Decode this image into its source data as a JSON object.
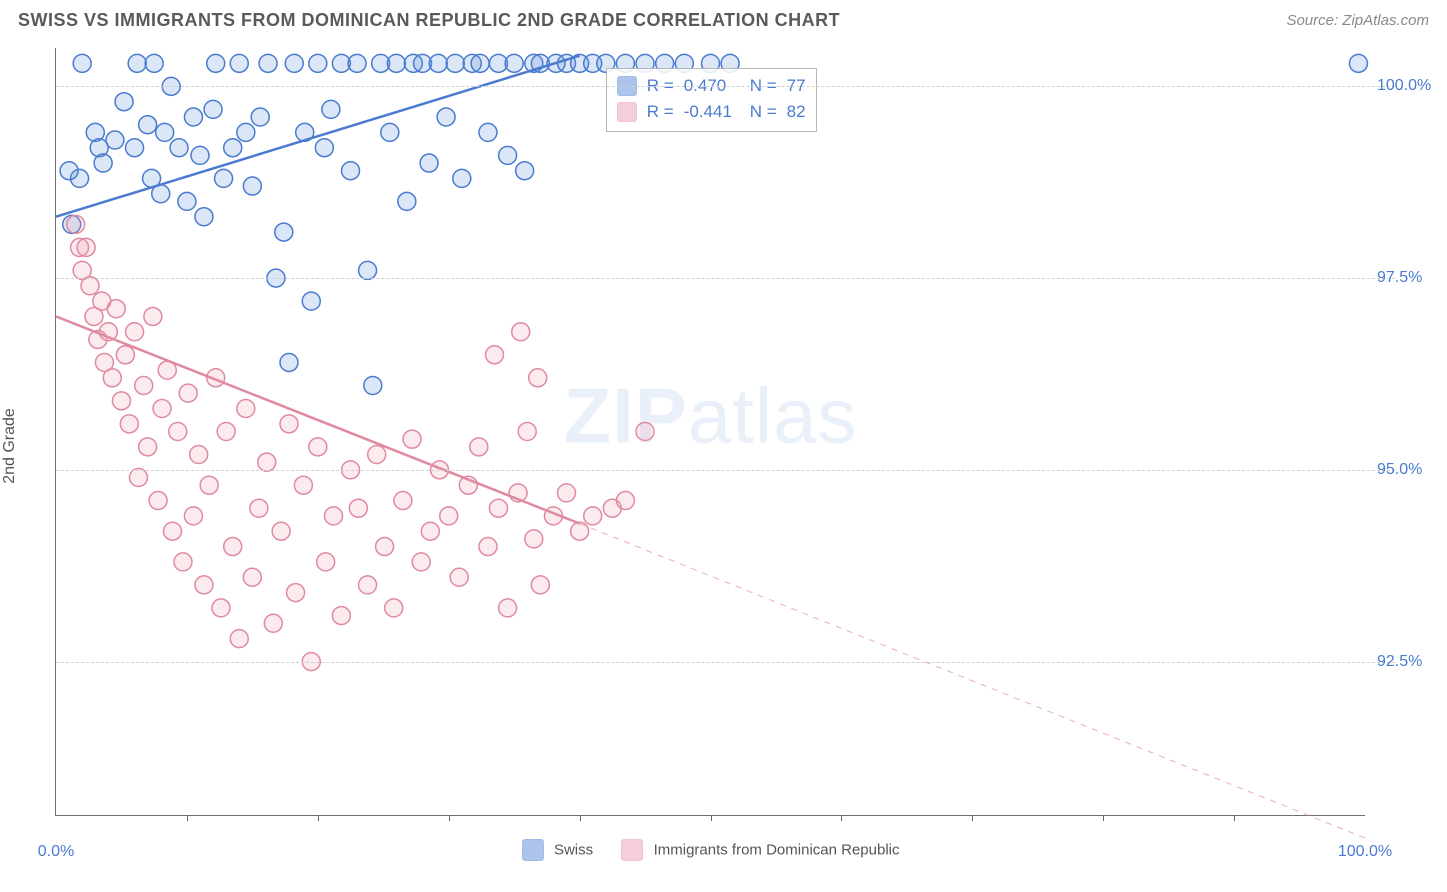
{
  "title": "SWISS VS IMMIGRANTS FROM DOMINICAN REPUBLIC 2ND GRADE CORRELATION CHART",
  "source_label": "Source: ZipAtlas.com",
  "y_axis_label": "2nd Grade",
  "x_axis": {
    "min": 0.0,
    "max": 100.0,
    "min_label": "0.0%",
    "max_label": "100.0%",
    "tick_step": 10
  },
  "y_axis": {
    "min": 90.5,
    "max": 100.5,
    "ticks": [
      92.5,
      95.0,
      97.5,
      100.0
    ],
    "tick_labels": [
      "92.5%",
      "95.0%",
      "97.5%",
      "100.0%"
    ]
  },
  "watermark": {
    "zip": "ZIP",
    "atlas": "atlas"
  },
  "legend_bottom": {
    "series1_label": "Swiss",
    "series2_label": "Immigrants from Dominican Republic"
  },
  "rn_legend": {
    "row1": {
      "r_label": "R =",
      "r_value": "0.470",
      "n_label": "N =",
      "n_value": "77"
    },
    "row2": {
      "r_label": "R =",
      "r_value": "-0.441",
      "n_label": "N =",
      "n_value": "82"
    }
  },
  "chart": {
    "type": "scatter-with-trend",
    "background_color": "#ffffff",
    "grid_color": "#d0d0d0",
    "axis_color": "#6f6f6f",
    "ylabel_fontsize": 16,
    "title_fontsize": 18,
    "marker_radius": 9,
    "marker_stroke_width": 1.5,
    "marker_fill_opacity": 0.22,
    "trend_line_width": 2.5,
    "series": [
      {
        "name": "swiss",
        "color_stroke": "#4a7bd0",
        "color_fill": "#5b8bd8",
        "trend": {
          "x1": 0,
          "y1": 98.3,
          "x2": 40,
          "y2": 100.4,
          "solid_until_x": 40
        },
        "points": [
          [
            2,
            100.3
          ],
          [
            3,
            99.4
          ],
          [
            3.3,
            99.2
          ],
          [
            1.8,
            98.8
          ],
          [
            1.0,
            98.9
          ],
          [
            1.2,
            98.2
          ],
          [
            3.6,
            99.0
          ],
          [
            4.5,
            99.3
          ],
          [
            5.2,
            99.8
          ],
          [
            6.0,
            99.2
          ],
          [
            6.2,
            100.3
          ],
          [
            7.0,
            99.5
          ],
          [
            7.3,
            98.8
          ],
          [
            7.5,
            100.3
          ],
          [
            8.0,
            98.6
          ],
          [
            8.3,
            99.4
          ],
          [
            8.8,
            100.0
          ],
          [
            9.4,
            99.2
          ],
          [
            10.0,
            98.5
          ],
          [
            10.5,
            99.6
          ],
          [
            11.0,
            99.1
          ],
          [
            11.3,
            98.3
          ],
          [
            12.0,
            99.7
          ],
          [
            12.2,
            100.3
          ],
          [
            12.8,
            98.8
          ],
          [
            13.5,
            99.2
          ],
          [
            14.0,
            100.3
          ],
          [
            14.5,
            99.4
          ],
          [
            15.0,
            98.7
          ],
          [
            15.6,
            99.6
          ],
          [
            16.2,
            100.3
          ],
          [
            16.8,
            97.5
          ],
          [
            17.4,
            98.1
          ],
          [
            17.8,
            96.4
          ],
          [
            18.2,
            100.3
          ],
          [
            19.0,
            99.4
          ],
          [
            19.5,
            97.2
          ],
          [
            20.0,
            100.3
          ],
          [
            20.5,
            99.2
          ],
          [
            21.0,
            99.7
          ],
          [
            21.8,
            100.3
          ],
          [
            22.5,
            98.9
          ],
          [
            23.0,
            100.3
          ],
          [
            23.8,
            97.6
          ],
          [
            24.2,
            96.1
          ],
          [
            24.8,
            100.3
          ],
          [
            25.5,
            99.4
          ],
          [
            26.0,
            100.3
          ],
          [
            26.8,
            98.5
          ],
          [
            27.3,
            100.3
          ],
          [
            28.0,
            100.3
          ],
          [
            28.5,
            99.0
          ],
          [
            29.2,
            100.3
          ],
          [
            29.8,
            99.6
          ],
          [
            30.5,
            100.3
          ],
          [
            31.0,
            98.8
          ],
          [
            31.8,
            100.3
          ],
          [
            32.4,
            100.3
          ],
          [
            33.0,
            99.4
          ],
          [
            33.8,
            100.3
          ],
          [
            34.5,
            99.1
          ],
          [
            35.0,
            100.3
          ],
          [
            35.8,
            98.9
          ],
          [
            36.5,
            100.3
          ],
          [
            37.0,
            100.3
          ],
          [
            38.2,
            100.3
          ],
          [
            39.0,
            100.3
          ],
          [
            40.0,
            100.3
          ],
          [
            41.0,
            100.3
          ],
          [
            42.0,
            100.3
          ],
          [
            43.5,
            100.3
          ],
          [
            45.0,
            100.3
          ],
          [
            46.5,
            100.3
          ],
          [
            48.0,
            100.3
          ],
          [
            50.0,
            100.3
          ],
          [
            51.5,
            100.3
          ],
          [
            99.5,
            100.3
          ]
        ]
      },
      {
        "name": "dominican",
        "color_stroke": "#e08aa0",
        "color_fill": "#eb9fb3",
        "trend": {
          "x1": 0,
          "y1": 97.0,
          "x2": 40,
          "y2": 94.3,
          "dashed_x2": 100,
          "dashed_y2": 90.2
        },
        "points": [
          [
            1.5,
            98.2
          ],
          [
            1.8,
            97.9
          ],
          [
            2.0,
            97.6
          ],
          [
            2.3,
            97.9
          ],
          [
            2.6,
            97.4
          ],
          [
            2.9,
            97.0
          ],
          [
            3.2,
            96.7
          ],
          [
            3.5,
            97.2
          ],
          [
            3.7,
            96.4
          ],
          [
            4.0,
            96.8
          ],
          [
            4.3,
            96.2
          ],
          [
            4.6,
            97.1
          ],
          [
            5.0,
            95.9
          ],
          [
            5.3,
            96.5
          ],
          [
            5.6,
            95.6
          ],
          [
            6.0,
            96.8
          ],
          [
            6.3,
            94.9
          ],
          [
            6.7,
            96.1
          ],
          [
            7.0,
            95.3
          ],
          [
            7.4,
            97.0
          ],
          [
            7.8,
            94.6
          ],
          [
            8.1,
            95.8
          ],
          [
            8.5,
            96.3
          ],
          [
            8.9,
            94.2
          ],
          [
            9.3,
            95.5
          ],
          [
            9.7,
            93.8
          ],
          [
            10.1,
            96.0
          ],
          [
            10.5,
            94.4
          ],
          [
            10.9,
            95.2
          ],
          [
            11.3,
            93.5
          ],
          [
            11.7,
            94.8
          ],
          [
            12.2,
            96.2
          ],
          [
            12.6,
            93.2
          ],
          [
            13.0,
            95.5
          ],
          [
            13.5,
            94.0
          ],
          [
            14.0,
            92.8
          ],
          [
            14.5,
            95.8
          ],
          [
            15.0,
            93.6
          ],
          [
            15.5,
            94.5
          ],
          [
            16.1,
            95.1
          ],
          [
            16.6,
            93.0
          ],
          [
            17.2,
            94.2
          ],
          [
            17.8,
            95.6
          ],
          [
            18.3,
            93.4
          ],
          [
            18.9,
            94.8
          ],
          [
            19.5,
            92.5
          ],
          [
            20.0,
            95.3
          ],
          [
            20.6,
            93.8
          ],
          [
            21.2,
            94.4
          ],
          [
            21.8,
            93.1
          ],
          [
            22.5,
            95.0
          ],
          [
            23.1,
            94.5
          ],
          [
            23.8,
            93.5
          ],
          [
            24.5,
            95.2
          ],
          [
            25.1,
            94.0
          ],
          [
            25.8,
            93.2
          ],
          [
            26.5,
            94.6
          ],
          [
            27.2,
            95.4
          ],
          [
            27.9,
            93.8
          ],
          [
            28.6,
            94.2
          ],
          [
            29.3,
            95.0
          ],
          [
            30.0,
            94.4
          ],
          [
            30.8,
            93.6
          ],
          [
            31.5,
            94.8
          ],
          [
            32.3,
            95.3
          ],
          [
            33.0,
            94.0
          ],
          [
            33.8,
            94.5
          ],
          [
            34.5,
            93.2
          ],
          [
            35.3,
            94.7
          ],
          [
            36.0,
            95.5
          ],
          [
            36.5,
            94.1
          ],
          [
            37.0,
            93.5
          ],
          [
            33.5,
            96.5
          ],
          [
            35.5,
            96.8
          ],
          [
            36.8,
            96.2
          ],
          [
            38.0,
            94.4
          ],
          [
            39.0,
            94.7
          ],
          [
            40.0,
            94.2
          ],
          [
            41.0,
            94.4
          ],
          [
            42.5,
            94.5
          ],
          [
            43.5,
            94.6
          ],
          [
            45.0,
            95.5
          ]
        ]
      }
    ]
  }
}
